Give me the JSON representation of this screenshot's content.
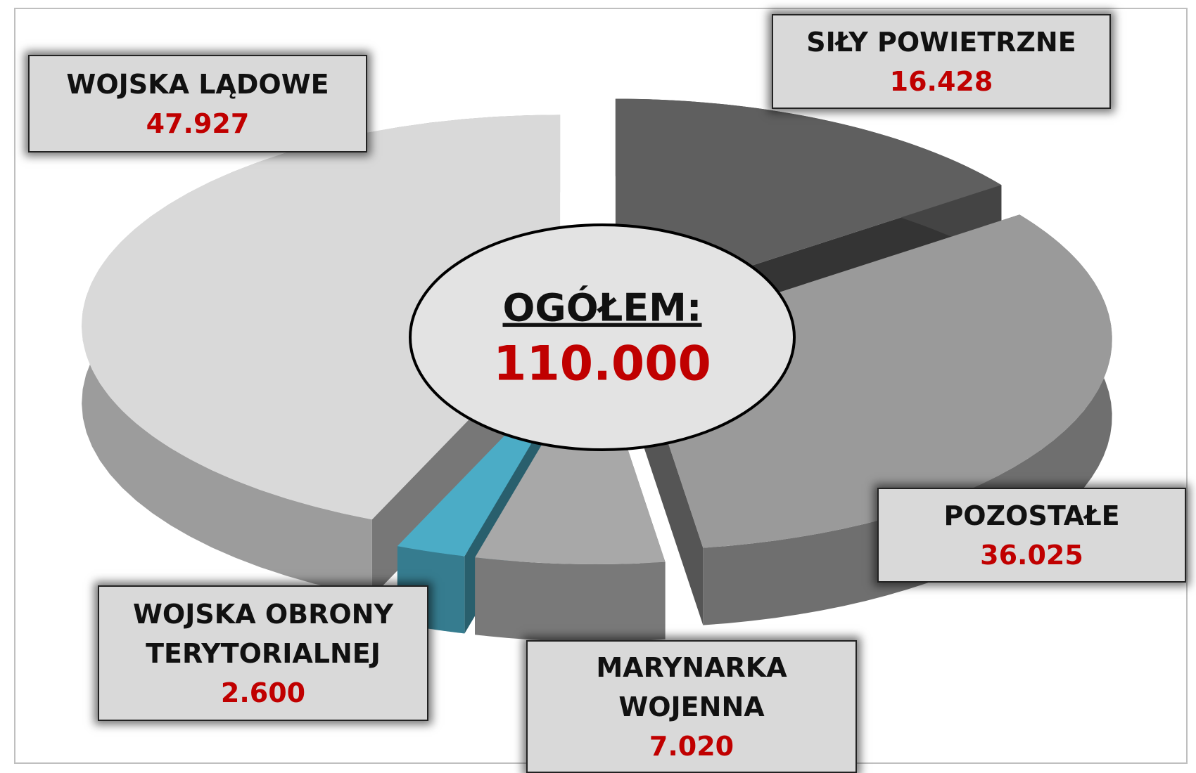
{
  "chart_data": {
    "type": "pie",
    "title": "OGÓŁEM:",
    "total": {
      "value": 110000,
      "label": "110.000"
    },
    "categories": [
      "SIŁY POWIETRZNE",
      "POZOSTAŁE",
      "MARYNARKA WOJENNA",
      "WOJSKA OBRONY TERYTORIALNEJ",
      "WOJSKA LĄDOWE"
    ],
    "values": [
      16428,
      36025,
      7020,
      2600,
      47927
    ],
    "value_labels": [
      "16.428",
      "36.025",
      "7.020",
      "2.600",
      "47.927"
    ],
    "colors": [
      "#5f5f5f",
      "#9a9a9a",
      "#a8a8a8",
      "#4bacc6",
      "#d9d9d9"
    ]
  }
}
